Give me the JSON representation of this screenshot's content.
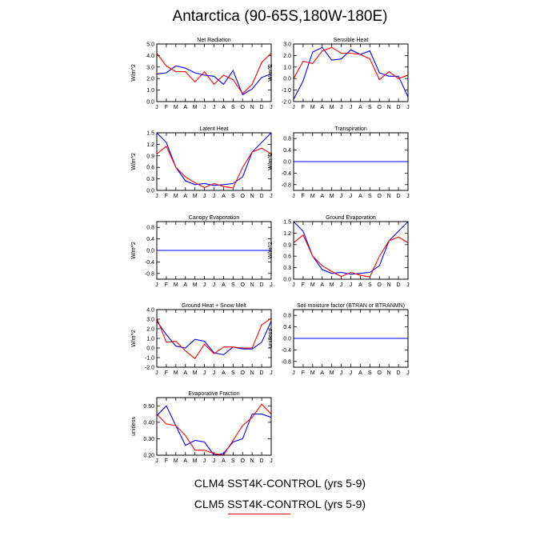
{
  "figure": {
    "title": "Antarctica (90-65S,180W-180E)",
    "legend": [
      {
        "label": "CLM4 SST4K-CONTROL (yrs 5-9)",
        "color": "#0000ff"
      },
      {
        "label": "CLM5 SST4K-CONTROL (yrs 5-9)",
        "color": "#ff0000"
      }
    ]
  },
  "chart_data": [
    {
      "type": "line",
      "title": "Net Radiation",
      "ylabel": "W/m^2",
      "x": [
        "J",
        "F",
        "M",
        "A",
        "M",
        "J",
        "J",
        "A",
        "S",
        "O",
        "N",
        "D",
        "J"
      ],
      "ylim": [
        0,
        5
      ],
      "yticks": [
        0,
        1,
        2,
        3,
        4,
        5
      ],
      "ytick_labels": [
        "0.0",
        "1.0",
        "2.0",
        "3.0",
        "4.0",
        "5.0"
      ],
      "series": [
        {
          "color": "#0000ff",
          "values": [
            2.4,
            2.5,
            3.1,
            2.9,
            2.5,
            2.3,
            2.2,
            1.5,
            2.7,
            0.6,
            1.1,
            2.1,
            2.4
          ]
        },
        {
          "color": "#ff0000",
          "values": [
            4.2,
            3.1,
            2.6,
            2.6,
            1.7,
            2.6,
            1.5,
            2.3,
            1.9,
            0.7,
            1.5,
            3.4,
            4.2
          ]
        }
      ]
    },
    {
      "type": "line",
      "title": "Sensible Heat",
      "ylabel": "W/m^2",
      "x": [
        "J",
        "F",
        "M",
        "A",
        "M",
        "J",
        "J",
        "A",
        "S",
        "O",
        "N",
        "D",
        "J"
      ],
      "ylim": [
        -2,
        3
      ],
      "yticks": [
        -2,
        -1,
        0,
        1,
        2,
        3
      ],
      "ytick_labels": [
        "-2.0",
        "-1.0",
        "0.0",
        "1.0",
        "2.0",
        "3.0"
      ],
      "series": [
        {
          "color": "#0000ff",
          "values": [
            -1.8,
            -0.2,
            2.3,
            2.7,
            1.6,
            1.7,
            2.5,
            2.1,
            2.4,
            0.5,
            0.2,
            0.2,
            -1.6
          ]
        },
        {
          "color": "#ff0000",
          "values": [
            0.0,
            1.5,
            1.3,
            2.4,
            2.7,
            2.2,
            2.2,
            2.1,
            1.7,
            -0.1,
            0.6,
            0.0,
            0.3
          ]
        }
      ]
    },
    {
      "type": "line",
      "title": "Latent Heat",
      "ylabel": "W/m^2",
      "x": [
        "J",
        "F",
        "M",
        "A",
        "M",
        "J",
        "J",
        "A",
        "S",
        "O",
        "N",
        "D",
        "J"
      ],
      "ylim": [
        0,
        1.5
      ],
      "yticks": [
        0,
        0.3,
        0.6,
        0.9,
        1.2,
        1.5
      ],
      "ytick_labels": [
        "0.0",
        "0.3",
        "0.6",
        "0.9",
        "1.2",
        "1.5"
      ],
      "series": [
        {
          "color": "#0000ff",
          "values": [
            1.5,
            1.25,
            0.6,
            0.25,
            0.15,
            0.18,
            0.13,
            0.15,
            0.18,
            0.35,
            1.0,
            1.25,
            1.5
          ]
        },
        {
          "color": "#ff0000",
          "values": [
            0.95,
            1.15,
            0.6,
            0.35,
            0.2,
            0.07,
            0.18,
            0.1,
            0.06,
            0.6,
            1.0,
            1.1,
            0.95
          ]
        }
      ]
    },
    {
      "type": "line",
      "title": "Transpiration",
      "ylabel": "W/m^2",
      "x": [
        "J",
        "F",
        "M",
        "A",
        "M",
        "J",
        "J",
        "A",
        "S",
        "O",
        "N",
        "D",
        "J"
      ],
      "ylim": [
        -1,
        1
      ],
      "yticks": [
        -0.8,
        -0.4,
        0,
        0.4,
        0.8
      ],
      "ytick_labels": [
        "-0.8",
        "-0.4",
        "0.0",
        "0.4",
        "0.8"
      ],
      "series": [
        {
          "color": "#ff0000",
          "values": [
            0,
            0,
            0,
            0,
            0,
            0,
            0,
            0,
            0,
            0,
            0,
            0,
            0
          ]
        },
        {
          "color": "#0000ff",
          "values": [
            0,
            0,
            0,
            0,
            0,
            0,
            0,
            0,
            0,
            0,
            0,
            0,
            0
          ]
        }
      ]
    },
    {
      "type": "line",
      "title": "Canopy Evaporation",
      "ylabel": "W/m^2",
      "x": [
        "J",
        "F",
        "M",
        "A",
        "M",
        "J",
        "J",
        "A",
        "S",
        "O",
        "N",
        "D",
        "J"
      ],
      "ylim": [
        -1,
        1
      ],
      "yticks": [
        -0.8,
        -0.4,
        0,
        0.4,
        0.8
      ],
      "ytick_labels": [
        "-0.8",
        "-0.4",
        "0.0",
        "0.4",
        "0.8"
      ],
      "series": [
        {
          "color": "#ff0000",
          "values": [
            0,
            0,
            0,
            0,
            0,
            0,
            0,
            0,
            0,
            0,
            0,
            0,
            0
          ]
        },
        {
          "color": "#0000ff",
          "values": [
            0,
            0,
            0,
            0,
            0,
            0,
            0,
            0,
            0,
            0,
            0,
            0,
            0
          ]
        }
      ]
    },
    {
      "type": "line",
      "title": "Ground Evaporation",
      "ylabel": "W/m^2",
      "x": [
        "J",
        "F",
        "M",
        "A",
        "M",
        "J",
        "J",
        "A",
        "S",
        "O",
        "N",
        "D",
        "J"
      ],
      "ylim": [
        0,
        1.5
      ],
      "yticks": [
        0,
        0.3,
        0.6,
        0.9,
        1.2,
        1.5
      ],
      "ytick_labels": [
        "0.0",
        "0.3",
        "0.6",
        "0.9",
        "1.2",
        "1.5"
      ],
      "series": [
        {
          "color": "#0000ff",
          "values": [
            1.5,
            1.25,
            0.6,
            0.25,
            0.15,
            0.18,
            0.13,
            0.15,
            0.18,
            0.35,
            1.0,
            1.25,
            1.5
          ]
        },
        {
          "color": "#ff0000",
          "values": [
            0.95,
            1.15,
            0.6,
            0.35,
            0.2,
            0.07,
            0.18,
            0.1,
            0.06,
            0.6,
            1.0,
            1.1,
            0.95
          ]
        }
      ]
    },
    {
      "type": "line",
      "title": "Ground Heat + Snow Melt",
      "ylabel": "W/m^2",
      "x": [
        "J",
        "F",
        "M",
        "A",
        "M",
        "J",
        "J",
        "A",
        "S",
        "O",
        "N",
        "D",
        "J"
      ],
      "ylim": [
        -2,
        4
      ],
      "yticks": [
        -2,
        -1,
        0,
        1,
        2,
        3,
        4
      ],
      "ytick_labels": [
        "-2.0",
        "-1.0",
        "0.0",
        "1.0",
        "2.0",
        "3.0",
        "4.0"
      ],
      "series": [
        {
          "color": "#0000ff",
          "values": [
            2.8,
            1.4,
            0.2,
            0.0,
            0.9,
            0.7,
            -0.5,
            -0.7,
            0.1,
            -0.1,
            -0.1,
            0.6,
            2.8
          ]
        },
        {
          "color": "#ff0000",
          "values": [
            3.1,
            0.6,
            0.7,
            -0.3,
            -1.1,
            0.4,
            -0.6,
            0.1,
            0.1,
            0.0,
            0.0,
            2.4,
            3.1
          ]
        }
      ]
    },
    {
      "type": "line",
      "title": "Soil moisture factor (BTRAN or BTRANMN)",
      "ylabel": "unitless",
      "x": [
        "J",
        "F",
        "M",
        "A",
        "M",
        "J",
        "J",
        "A",
        "S",
        "O",
        "N",
        "D",
        "J"
      ],
      "ylim": [
        -1,
        1
      ],
      "yticks": [
        -0.8,
        -0.4,
        0,
        0.4,
        0.8
      ],
      "ytick_labels": [
        "-0.8",
        "-0.4",
        "0.0",
        "0.4",
        "0.8"
      ],
      "series": [
        {
          "color": "#ff0000",
          "values": [
            0,
            0,
            0,
            0,
            0,
            0,
            0,
            0,
            0,
            0,
            0,
            0,
            0
          ]
        },
        {
          "color": "#0000ff",
          "values": [
            0,
            0,
            0,
            0,
            0,
            0,
            0,
            0,
            0,
            0,
            0,
            0,
            0
          ]
        }
      ]
    },
    {
      "type": "line",
      "title": "Evaporative Fraction",
      "ylabel": "unitless",
      "x": [
        "J",
        "F",
        "M",
        "A",
        "M",
        "J",
        "J",
        "A",
        "S",
        "O",
        "N",
        "D",
        "J"
      ],
      "ylim": [
        0.2,
        0.55
      ],
      "yticks": [
        0.2,
        0.3,
        0.4,
        0.5
      ],
      "ytick_labels": [
        "0.20",
        "0.30",
        "0.40",
        "0.50"
      ],
      "series": [
        {
          "color": "#0000ff",
          "values": [
            0.44,
            0.5,
            0.38,
            0.26,
            0.29,
            0.28,
            0.2,
            0.21,
            0.28,
            0.3,
            0.45,
            0.45,
            0.43
          ]
        },
        {
          "color": "#ff0000",
          "values": [
            0.45,
            0.39,
            0.38,
            0.32,
            0.23,
            0.23,
            0.21,
            0.2,
            0.29,
            0.38,
            0.43,
            0.51,
            0.45
          ]
        }
      ]
    }
  ]
}
